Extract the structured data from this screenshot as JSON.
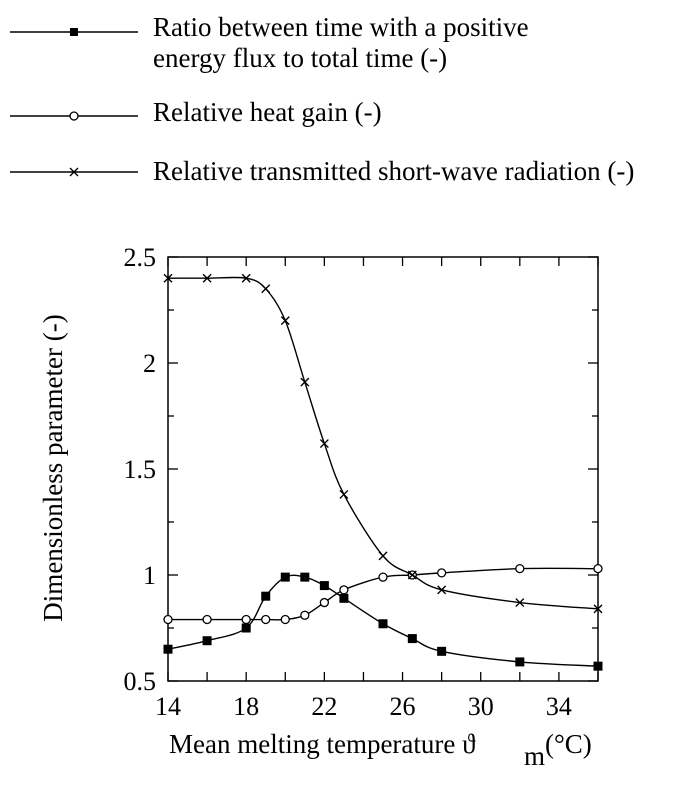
{
  "chart_data": {
    "type": "line",
    "xlabel": "Mean melting temperature ϑ",
    "xlabel_subscript": "m",
    "xlabel_unit": "(°C)",
    "ylabel": "Dimensionless parameter (-)",
    "xlim": [
      14,
      36
    ],
    "ylim": [
      0.5,
      2.5
    ],
    "x_ticks": [
      "14",
      "18",
      "22",
      "26",
      "30",
      "34"
    ],
    "y_ticks": [
      "0.5",
      "1",
      "1.5",
      "2",
      "2.5"
    ],
    "grid": false,
    "legend_position": "top",
    "series": [
      {
        "name_line1": "Ratio between time with a positive",
        "name_line2": "energy flux to total time (-)",
        "marker": "square-filled",
        "x": [
          14,
          16,
          18,
          19,
          20,
          21,
          22,
          23,
          25,
          26.5,
          28,
          32,
          36
        ],
        "y": [
          0.65,
          0.69,
          0.75,
          0.9,
          0.99,
          0.99,
          0.95,
          0.89,
          0.77,
          0.7,
          0.64,
          0.59,
          0.57
        ]
      },
      {
        "name": "Relative heat gain (-)",
        "marker": "circle-open",
        "x": [
          14,
          16,
          18,
          19,
          20,
          21,
          22,
          23,
          25,
          26.5,
          28,
          32,
          36
        ],
        "y": [
          0.79,
          0.79,
          0.79,
          0.79,
          0.79,
          0.81,
          0.87,
          0.93,
          0.99,
          1.0,
          1.01,
          1.03,
          1.03
        ]
      },
      {
        "name": "Relative transmitted short-wave radiation (-)",
        "marker": "cross",
        "x": [
          14,
          16,
          18,
          19,
          20,
          21,
          22,
          23,
          25,
          26.5,
          28,
          32,
          36
        ],
        "y": [
          2.4,
          2.4,
          2.4,
          2.35,
          2.2,
          1.91,
          1.62,
          1.38,
          1.09,
          1.0,
          0.93,
          0.87,
          0.84
        ]
      }
    ]
  }
}
